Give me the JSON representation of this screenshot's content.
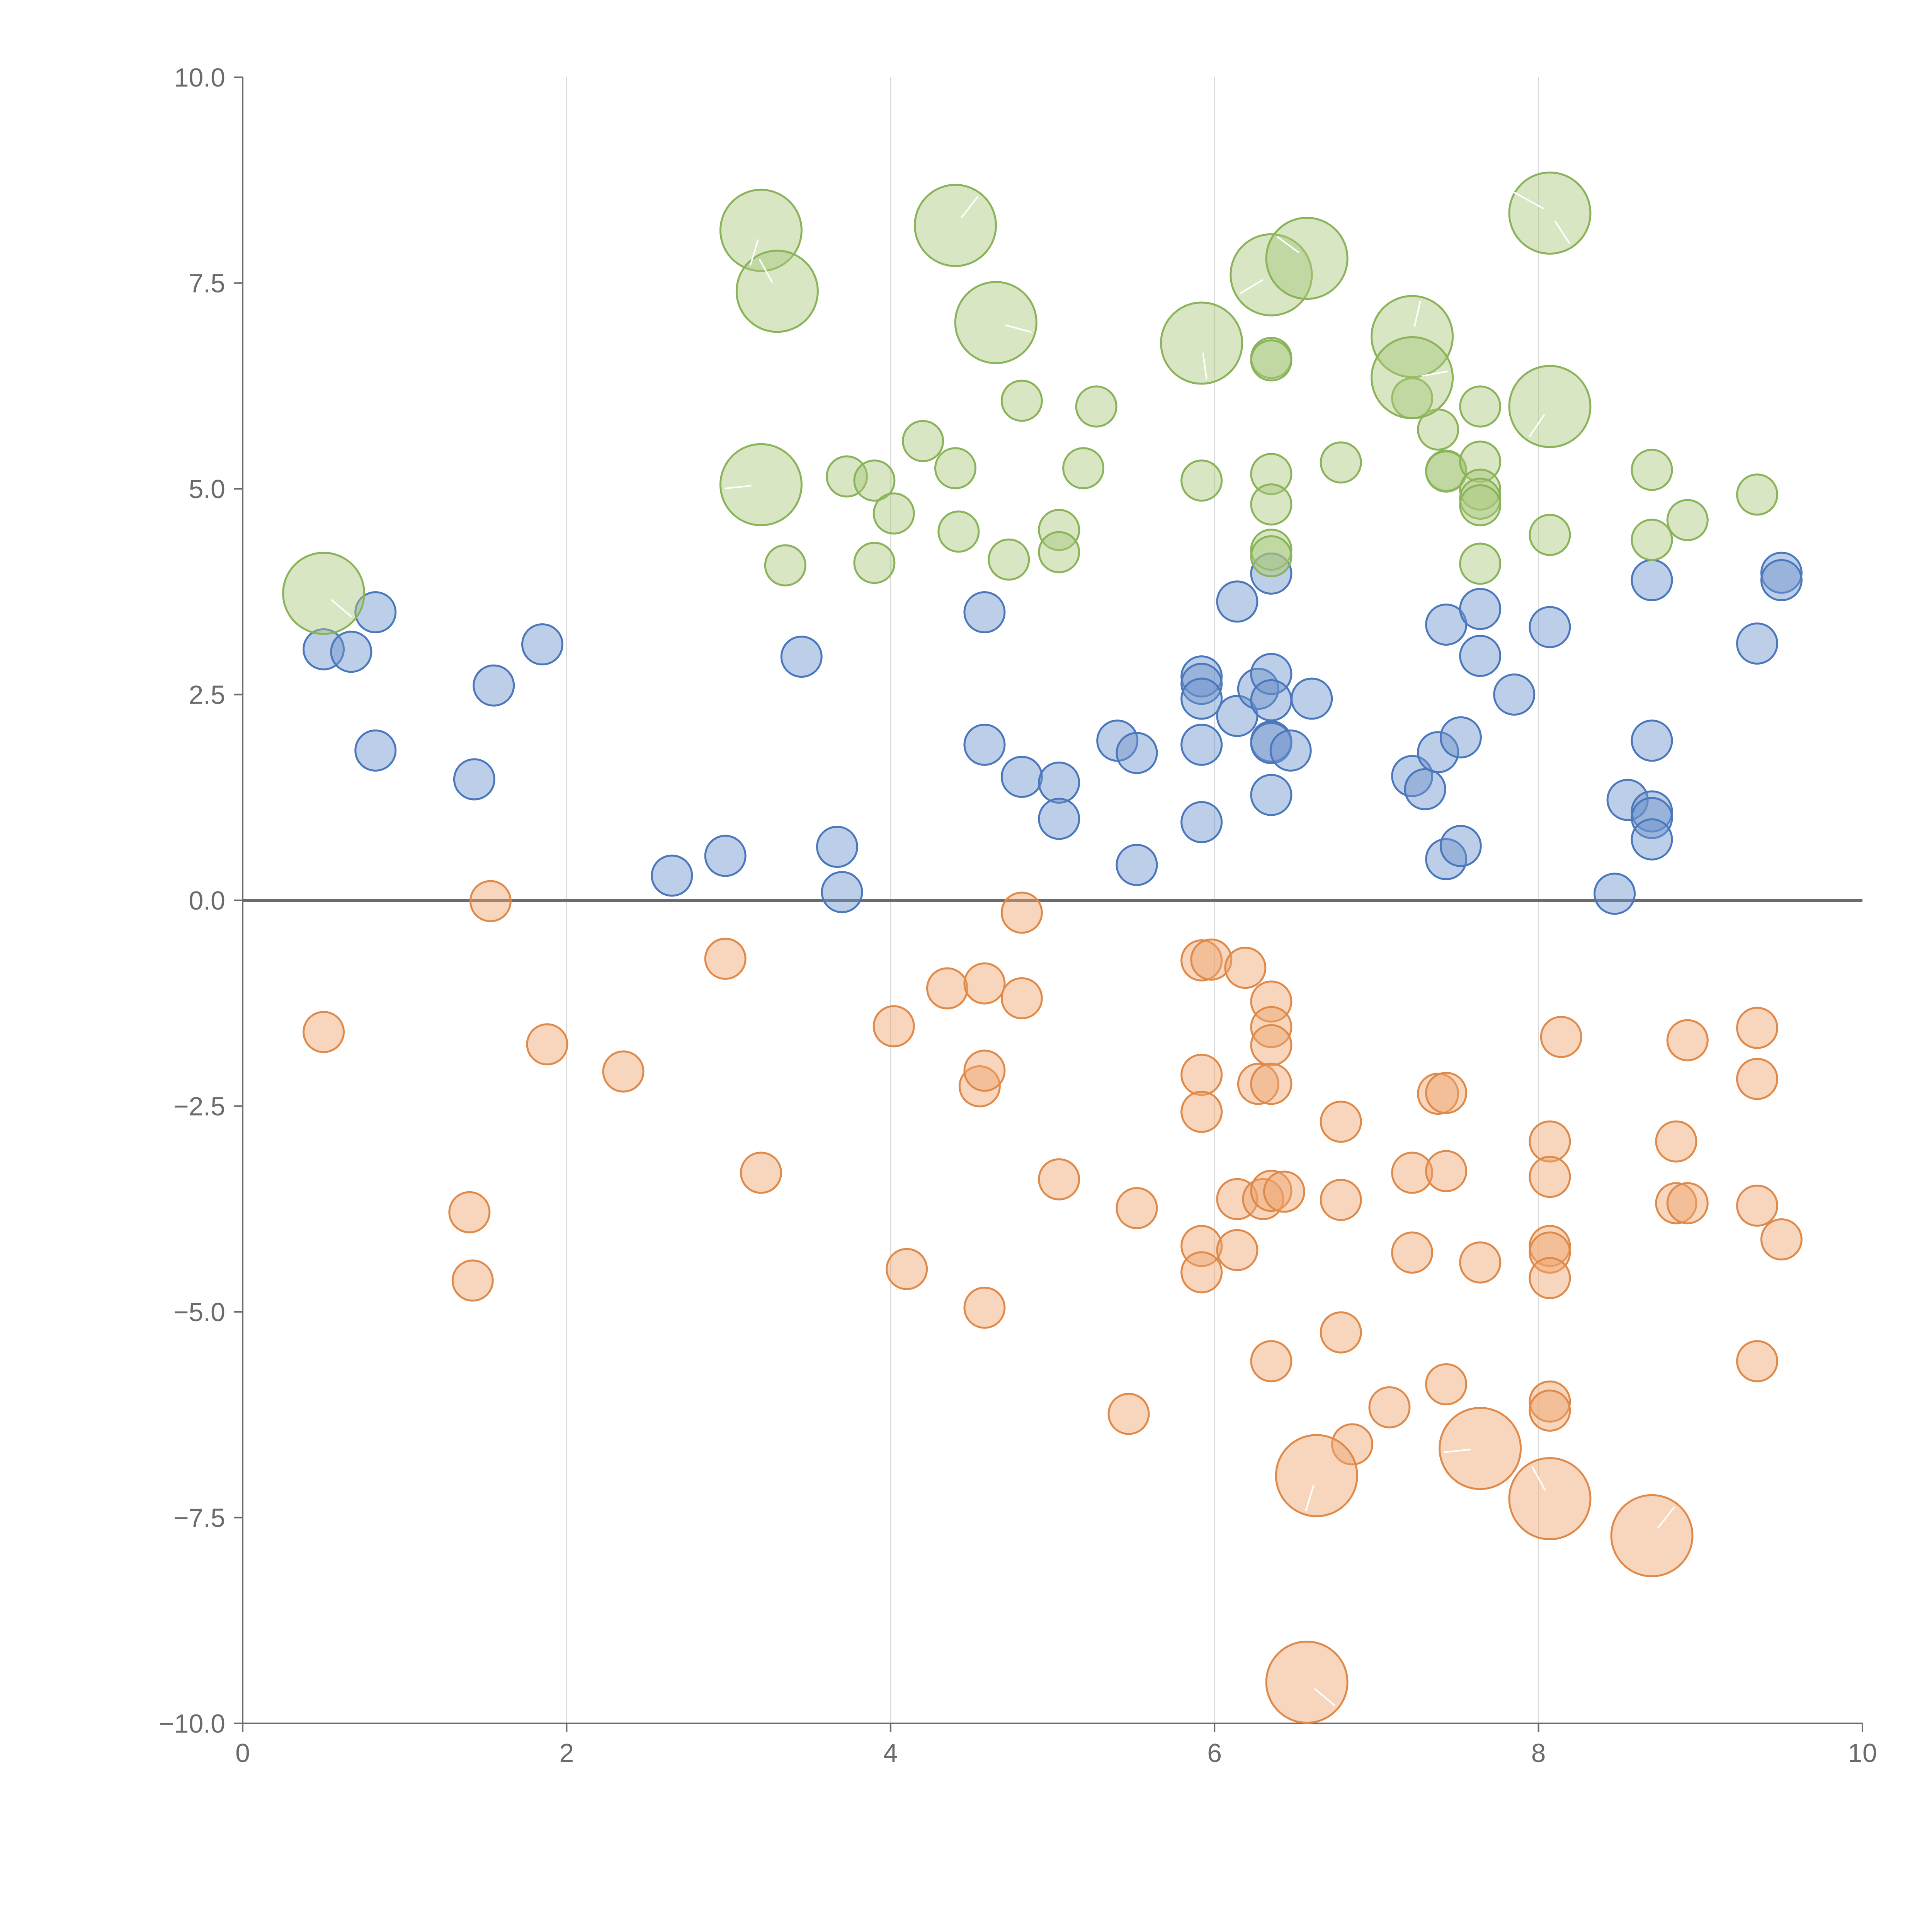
{
  "chart_data": {
    "type": "scatter",
    "title": "",
    "xlabel": "",
    "ylabel": "",
    "xlim": [
      0,
      10
    ],
    "ylim": [
      -10,
      10
    ],
    "x_ticks": [
      "0",
      "2",
      "4",
      "6",
      "8",
      "10"
    ],
    "y_ticks": [
      "−10.0",
      "−7.5",
      "−5.0",
      "−2.5",
      "0.0",
      "2.5",
      "5.0",
      "7.5",
      "10.0"
    ],
    "x_grid": [
      2,
      4,
      6,
      8
    ],
    "reference_line_y": 0,
    "colors": {
      "blue": "#6d93cc",
      "orange": "#eda36c",
      "green": "#a9c77a"
    },
    "series": [
      {
        "color": "blue",
        "points": [
          [
            0.5,
            3.05
          ],
          [
            0.67,
            3.02
          ],
          [
            0.82,
            3.5
          ],
          [
            0.82,
            1.82
          ],
          [
            1.43,
            1.47
          ],
          [
            1.55,
            2.61
          ],
          [
            1.85,
            3.11
          ],
          [
            2.65,
            0.3
          ],
          [
            2.98,
            0.54
          ],
          [
            3.45,
            2.96
          ],
          [
            3.67,
            0.65
          ],
          [
            3.7,
            0.1
          ],
          [
            4.58,
            3.5
          ],
          [
            4.58,
            1.89
          ],
          [
            4.81,
            1.5
          ],
          [
            5.04,
            1.43
          ],
          [
            5.04,
            0.99
          ],
          [
            5.4,
            1.94
          ],
          [
            5.52,
            1.79
          ],
          [
            5.52,
            0.43
          ],
          [
            5.92,
            2.72
          ],
          [
            5.92,
            2.63
          ],
          [
            5.92,
            2.45
          ],
          [
            5.92,
            1.89
          ],
          [
            5.92,
            0.95
          ],
          [
            6.14,
            3.63
          ],
          [
            6.14,
            2.24
          ],
          [
            6.27,
            2.57
          ],
          [
            6.35,
            3.97
          ],
          [
            6.35,
            2.75
          ],
          [
            6.35,
            2.43
          ],
          [
            6.35,
            1.93
          ],
          [
            6.35,
            1.91
          ],
          [
            6.35,
            1.28
          ],
          [
            6.47,
            1.82
          ],
          [
            6.6,
            2.45
          ],
          [
            7.22,
            1.51
          ],
          [
            7.3,
            1.35
          ],
          [
            7.38,
            1.8
          ],
          [
            7.43,
            3.35
          ],
          [
            7.43,
            0.5
          ],
          [
            7.52,
            1.98
          ],
          [
            7.52,
            0.66
          ],
          [
            7.64,
            3.54
          ],
          [
            7.64,
            2.97
          ],
          [
            7.85,
            2.5
          ],
          [
            8.07,
            3.32
          ],
          [
            8.47,
            0.08
          ],
          [
            8.55,
            1.22
          ],
          [
            8.7,
            3.89
          ],
          [
            8.7,
            1.94
          ],
          [
            8.7,
            1.08
          ],
          [
            8.7,
            1.0
          ],
          [
            8.7,
            0.74
          ],
          [
            9.35,
            3.12
          ],
          [
            9.5,
            3.98
          ],
          [
            9.5,
            3.89
          ]
        ]
      },
      {
        "color": "orange",
        "points": [
          [
            0.5,
            -1.6
          ],
          [
            1.4,
            -3.79
          ],
          [
            1.42,
            -4.62
          ],
          [
            1.53,
            -0.01
          ],
          [
            1.88,
            -1.75
          ],
          [
            2.35,
            -2.08
          ],
          [
            2.98,
            -0.71
          ],
          [
            3.2,
            -3.31
          ],
          [
            4.02,
            -1.53
          ],
          [
            4.1,
            -4.48
          ],
          [
            4.35,
            -1.07
          ],
          [
            4.55,
            -2.26
          ],
          [
            4.58,
            -2.07
          ],
          [
            4.58,
            -1.01
          ],
          [
            4.58,
            -4.95
          ],
          [
            4.81,
            -0.15
          ],
          [
            4.81,
            -1.19
          ],
          [
            5.04,
            -3.39
          ],
          [
            5.47,
            -6.24
          ],
          [
            5.52,
            -3.74
          ],
          [
            5.92,
            -0.73
          ],
          [
            5.92,
            -2.12
          ],
          [
            5.92,
            -2.57
          ],
          [
            5.92,
            -4.2
          ],
          [
            5.92,
            -4.52
          ],
          [
            5.98,
            -0.72
          ],
          [
            6.14,
            -3.63
          ],
          [
            6.14,
            -4.25
          ],
          [
            6.19,
            -0.82
          ],
          [
            6.27,
            -2.23
          ],
          [
            6.3,
            -3.63
          ],
          [
            6.35,
            -1.23
          ],
          [
            6.35,
            -1.54
          ],
          [
            6.35,
            -1.76
          ],
          [
            6.35,
            -2.23
          ],
          [
            6.35,
            -3.53
          ],
          [
            6.35,
            -5.6
          ],
          [
            6.43,
            -3.54
          ],
          [
            6.78,
            -2.69
          ],
          [
            6.78,
            -3.64
          ],
          [
            6.78,
            -5.25
          ],
          [
            6.85,
            -6.61
          ],
          [
            7.08,
            -6.16
          ],
          [
            7.22,
            -3.31
          ],
          [
            7.22,
            -4.28
          ],
          [
            7.38,
            -2.35
          ],
          [
            7.43,
            -2.34
          ],
          [
            7.43,
            -3.29
          ],
          [
            7.43,
            -5.88
          ],
          [
            7.64,
            -4.4
          ],
          [
            8.07,
            -2.93
          ],
          [
            8.07,
            -3.36
          ],
          [
            8.07,
            -4.2
          ],
          [
            8.07,
            -4.28
          ],
          [
            8.07,
            -4.59
          ],
          [
            8.07,
            -6.09
          ],
          [
            8.07,
            -6.2
          ],
          [
            8.14,
            -1.66
          ],
          [
            8.85,
            -2.93
          ],
          [
            8.85,
            -3.68
          ],
          [
            8.92,
            -1.7
          ],
          [
            8.92,
            -3.68
          ],
          [
            9.35,
            -1.55
          ],
          [
            9.35,
            -2.17
          ],
          [
            9.35,
            -3.71
          ],
          [
            9.35,
            -5.6
          ],
          [
            9.5,
            -4.12
          ]
        ],
        "large_points": [
          [
            6.57,
            -9.5
          ],
          [
            6.63,
            -6.99
          ],
          [
            7.64,
            -6.66
          ],
          [
            8.07,
            -7.27
          ],
          [
            8.7,
            -7.72
          ]
        ]
      },
      {
        "color": "green",
        "points": [
          [
            3.35,
            4.07
          ],
          [
            3.73,
            5.15
          ],
          [
            3.9,
            4.1
          ],
          [
            3.9,
            5.1
          ],
          [
            4.02,
            4.7
          ],
          [
            4.2,
            5.58
          ],
          [
            4.4,
            5.25
          ],
          [
            4.42,
            4.48
          ],
          [
            4.73,
            4.14
          ],
          [
            4.81,
            6.07
          ],
          [
            5.04,
            4.5
          ],
          [
            5.04,
            4.23
          ],
          [
            5.19,
            5.25
          ],
          [
            5.27,
            6.0
          ],
          [
            5.92,
            5.1
          ],
          [
            6.35,
            6.59
          ],
          [
            6.35,
            6.56
          ],
          [
            6.35,
            5.18
          ],
          [
            6.35,
            4.81
          ],
          [
            6.35,
            4.26
          ],
          [
            6.35,
            4.18
          ],
          [
            6.78,
            5.32
          ],
          [
            7.22,
            6.1
          ],
          [
            7.38,
            5.72
          ],
          [
            7.43,
            5.22
          ],
          [
            7.43,
            5.21
          ],
          [
            7.64,
            6.0
          ],
          [
            7.64,
            5.33
          ],
          [
            7.64,
            4.99
          ],
          [
            7.64,
            4.88
          ],
          [
            7.64,
            4.8
          ],
          [
            7.64,
            4.09
          ],
          [
            8.07,
            4.44
          ],
          [
            8.7,
            5.23
          ],
          [
            8.7,
            4.38
          ],
          [
            8.92,
            4.62
          ],
          [
            9.35,
            4.93
          ]
        ],
        "large_points": [
          [
            0.5,
            3.73
          ],
          [
            3.2,
            8.14
          ],
          [
            3.2,
            5.05
          ],
          [
            3.3,
            7.4
          ],
          [
            4.4,
            8.2
          ],
          [
            4.65,
            7.02
          ],
          [
            5.92,
            6.77
          ],
          [
            6.35,
            7.6
          ],
          [
            6.57,
            7.8
          ],
          [
            7.22,
            6.85
          ],
          [
            7.22,
            6.35
          ],
          [
            8.07,
            8.35
          ],
          [
            8.07,
            6.0
          ]
        ]
      }
    ]
  }
}
